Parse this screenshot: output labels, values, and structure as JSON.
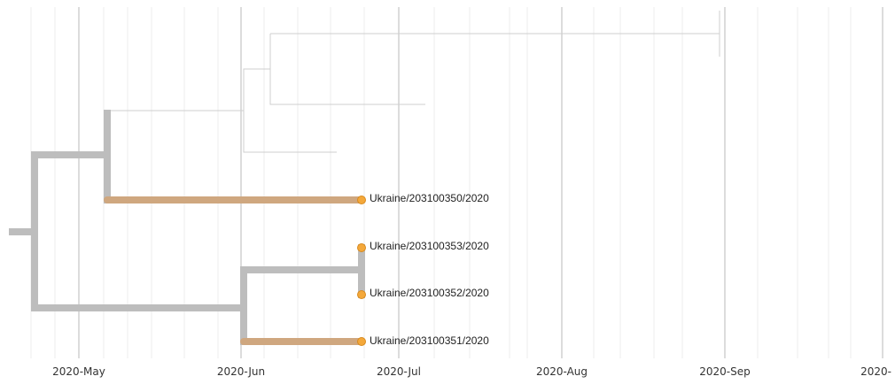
{
  "axis": {
    "ticks": [
      "2020-May",
      "2020-Jun",
      "2020-Jul",
      "2020-Aug",
      "2020-Sep",
      "2020-"
    ]
  },
  "tips": [
    {
      "label": "Ukraine/203100350/2020"
    },
    {
      "label": "Ukraine/203100353/2020"
    },
    {
      "label": "Ukraine/203100352/2020"
    },
    {
      "label": "Ukraine/203100351/2020"
    }
  ],
  "colors": {
    "branch": "#bdbdbd",
    "highlight_branch": "#cfa77f",
    "tip_fill": "#f4a83a",
    "grid": "#ececec"
  }
}
